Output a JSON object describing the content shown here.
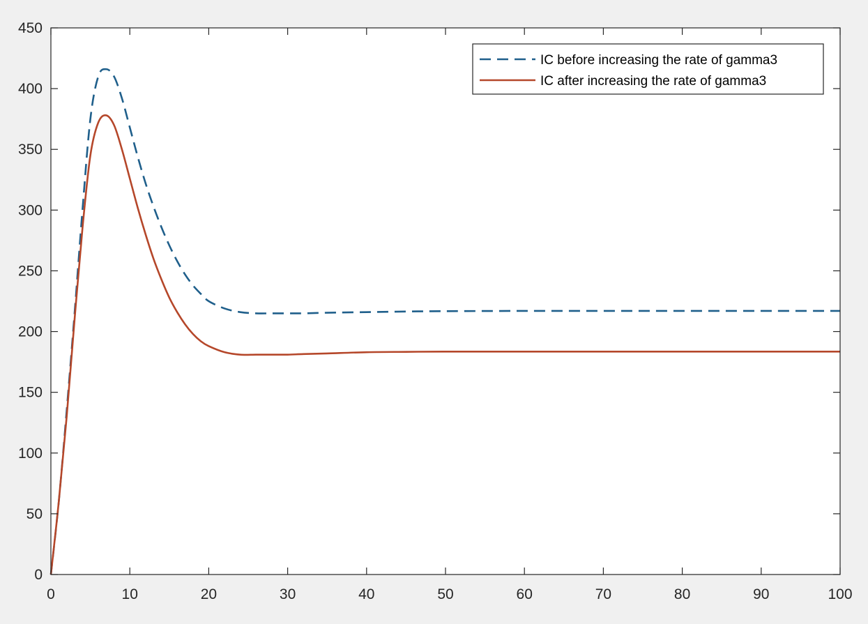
{
  "chart_data": {
    "type": "line",
    "title": "",
    "xlabel": "",
    "ylabel": "",
    "xlim": [
      0,
      100
    ],
    "ylim": [
      0,
      450
    ],
    "xticks": [
      0,
      10,
      20,
      30,
      40,
      50,
      60,
      70,
      80,
      90,
      100
    ],
    "yticks": [
      0,
      50,
      100,
      150,
      200,
      250,
      300,
      350,
      400,
      450
    ],
    "grid": false,
    "legend_position": "top-right",
    "series": [
      {
        "name": "IC before increasing the rate of gamma3",
        "color": "#1f5f8b",
        "style": "dashed",
        "x": [
          0,
          1,
          2,
          3,
          4,
          5,
          6,
          7,
          8,
          9,
          10,
          11,
          12,
          13,
          14,
          15,
          16,
          17,
          18,
          19,
          20,
          22,
          24,
          26,
          28,
          30,
          32,
          35,
          40,
          45,
          50,
          60,
          70,
          80,
          90,
          100
        ],
        "y": [
          0,
          60,
          135,
          215,
          300,
          375,
          410,
          416,
          410,
          392,
          368,
          344,
          322,
          303,
          286,
          271,
          258,
          247,
          238,
          231,
          225,
          219,
          216,
          215,
          215,
          215,
          215,
          215.5,
          216,
          216.5,
          216.8,
          217,
          217,
          217,
          217,
          217
        ]
      },
      {
        "name": "IC after increasing the rate of gamma3",
        "color": "#b5472a",
        "style": "solid",
        "x": [
          0,
          1,
          2,
          3,
          4,
          5,
          6,
          7,
          8,
          9,
          10,
          11,
          12,
          13,
          14,
          15,
          16,
          17,
          18,
          19,
          20,
          22,
          24,
          26,
          28,
          30,
          32,
          35,
          40,
          45,
          50,
          60,
          70,
          80,
          90,
          100
        ],
        "y": [
          0,
          60,
          130,
          210,
          285,
          345,
          372,
          378,
          370,
          350,
          326,
          302,
          280,
          260,
          243,
          228,
          216,
          206,
          198,
          192,
          188,
          183,
          181,
          181,
          181,
          181,
          181.5,
          182,
          183,
          183.3,
          183.5,
          183.5,
          183.5,
          183.5,
          183.5,
          183.5
        ]
      }
    ]
  }
}
